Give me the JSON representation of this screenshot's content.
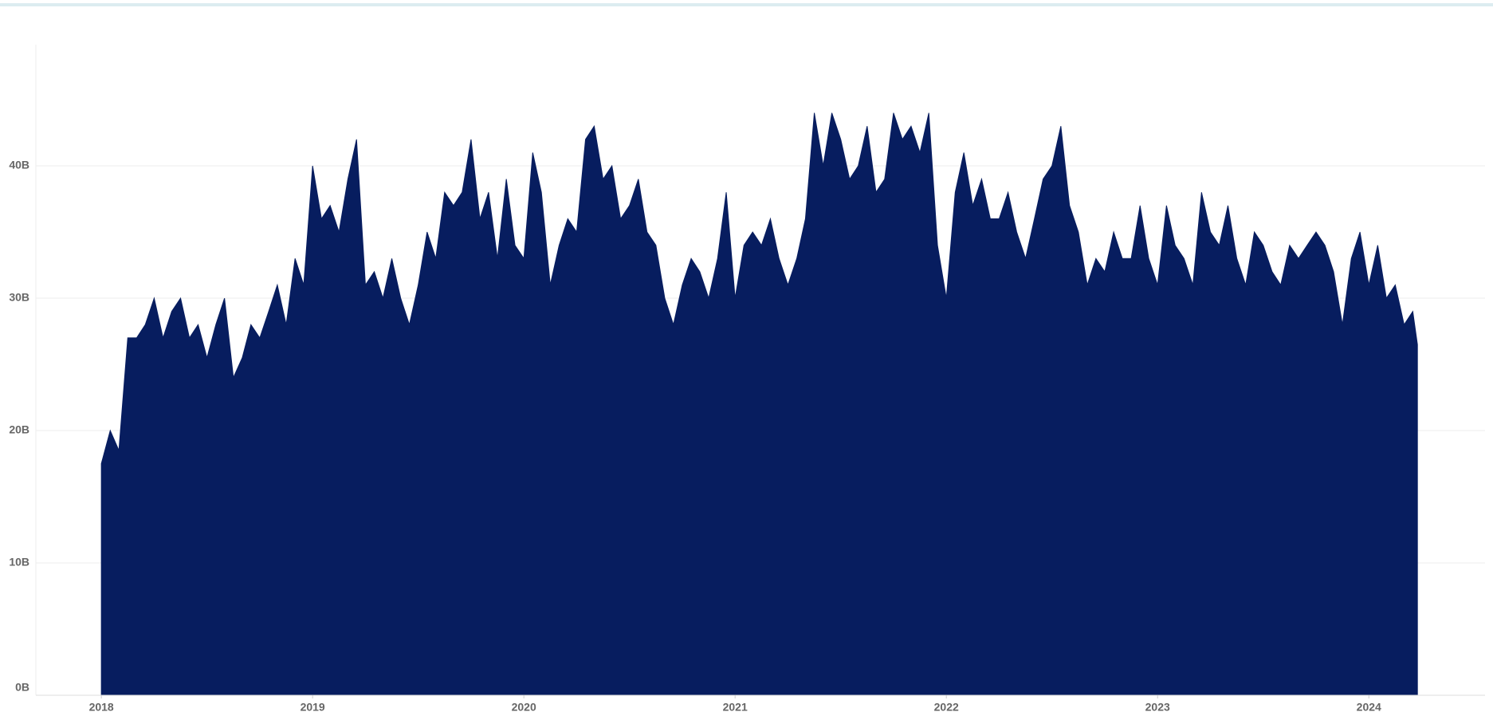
{
  "chart_data": {
    "type": "area",
    "x": [
      2018,
      2018.042,
      2018.083,
      2018.125,
      2018.167,
      2018.208,
      2018.25,
      2018.292,
      2018.333,
      2018.375,
      2018.417,
      2018.458,
      2018.5,
      2018.542,
      2018.583,
      2018.625,
      2018.667,
      2018.708,
      2018.75,
      2018.792,
      2018.833,
      2018.875,
      2018.917,
      2018.958,
      2019,
      2019.042,
      2019.083,
      2019.125,
      2019.167,
      2019.208,
      2019.25,
      2019.292,
      2019.333,
      2019.375,
      2019.417,
      2019.458,
      2019.5,
      2019.542,
      2019.583,
      2019.625,
      2019.667,
      2019.708,
      2019.75,
      2019.792,
      2019.833,
      2019.875,
      2019.917,
      2019.958,
      2020,
      2020.042,
      2020.083,
      2020.125,
      2020.167,
      2020.208,
      2020.25,
      2020.292,
      2020.333,
      2020.375,
      2020.417,
      2020.458,
      2020.5,
      2020.542,
      2020.583,
      2020.625,
      2020.667,
      2020.708,
      2020.75,
      2020.792,
      2020.833,
      2020.875,
      2020.917,
      2020.958,
      2021,
      2021.042,
      2021.083,
      2021.125,
      2021.167,
      2021.208,
      2021.25,
      2021.292,
      2021.333,
      2021.375,
      2021.417,
      2021.458,
      2021.5,
      2021.542,
      2021.583,
      2021.625,
      2021.667,
      2021.708,
      2021.75,
      2021.792,
      2021.833,
      2021.875,
      2021.917,
      2021.958,
      2022,
      2022.042,
      2022.083,
      2022.125,
      2022.167,
      2022.208,
      2022.25,
      2022.292,
      2022.333,
      2022.375,
      2022.417,
      2022.458,
      2022.5,
      2022.542,
      2022.583,
      2022.625,
      2022.667,
      2022.708,
      2022.75,
      2022.792,
      2022.833,
      2022.875,
      2022.917,
      2022.958,
      2023,
      2023.042,
      2023.083,
      2023.125,
      2023.167,
      2023.208,
      2023.25,
      2023.292,
      2023.333,
      2023.375,
      2023.417,
      2023.458,
      2023.5,
      2023.542,
      2023.583,
      2023.625,
      2023.667,
      2023.708,
      2023.75,
      2023.792,
      2023.833,
      2023.875,
      2023.917,
      2023.958,
      2024,
      2024.042,
      2024.083,
      2024.125,
      2024.167,
      2024.208,
      2024.23
    ],
    "values": [
      17.5,
      20,
      18.5,
      27,
      27,
      28,
      30,
      27,
      29,
      30,
      27,
      28,
      25.5,
      28,
      30,
      24,
      25.5,
      28,
      27,
      29,
      31,
      28,
      33,
      31,
      40,
      36,
      37,
      35,
      39,
      42,
      31,
      32,
      30,
      33,
      30,
      28,
      31,
      35,
      33,
      38,
      37,
      38,
      42,
      36,
      38,
      33,
      39,
      34,
      33,
      41,
      38,
      31,
      34,
      36,
      35,
      42,
      43,
      39,
      40,
      36,
      37,
      39,
      35,
      34,
      30,
      28,
      31,
      33,
      32,
      30,
      33,
      38,
      30,
      34,
      35,
      34,
      36,
      33,
      31,
      33,
      36,
      44,
      40,
      44,
      42,
      39,
      40,
      43,
      38,
      39,
      44,
      42,
      43,
      41,
      44,
      34,
      30,
      38,
      41,
      37,
      39,
      36,
      36,
      38,
      35,
      33,
      36,
      39,
      40,
      43,
      37,
      35,
      31,
      33,
      32,
      35,
      33,
      33,
      37,
      33,
      31,
      37,
      34,
      33,
      31,
      38,
      35,
      34,
      37,
      33,
      31,
      35,
      34,
      32,
      31,
      34,
      33,
      34,
      35,
      34,
      32,
      28,
      33,
      35,
      31,
      34,
      30,
      31,
      28,
      29,
      26.5
    ],
    "color": "#071d5f",
    "xlim": [
      2017.69,
      2024.55
    ],
    "xticks": [
      2018,
      2019,
      2020,
      2021,
      2022,
      2023,
      2024
    ],
    "ylim": [
      0,
      49
    ],
    "yticks": [
      {
        "value": 0,
        "label": "0B"
      },
      {
        "value": 10,
        "label": "10B"
      },
      {
        "value": 20,
        "label": "20B"
      },
      {
        "value": 30,
        "label": "30B"
      },
      {
        "value": 40,
        "label": "40B"
      }
    ],
    "grid": true
  }
}
